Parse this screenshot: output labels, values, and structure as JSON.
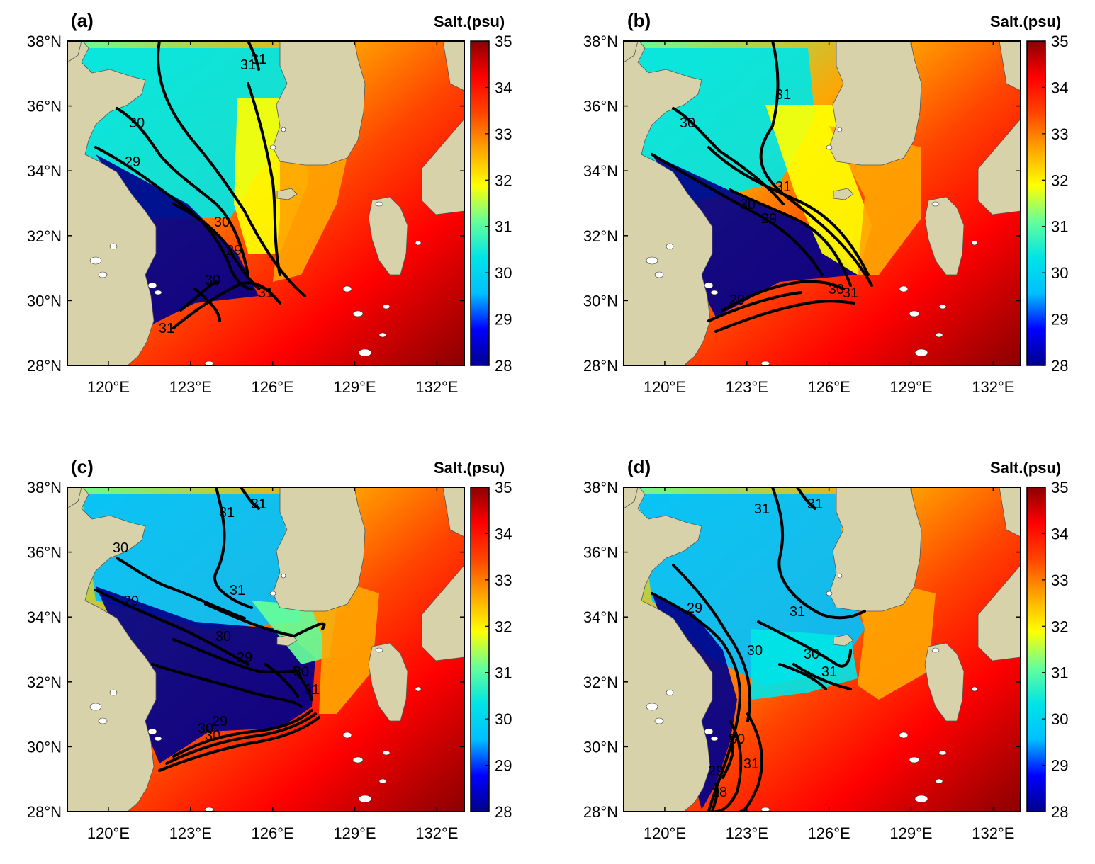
{
  "figure": {
    "colorbar": {
      "title": "Salt.(psu)",
      "ticks": [
        "35",
        "34",
        "33",
        "32",
        "31",
        "30",
        "29",
        "28"
      ],
      "colors": [
        "#00008b",
        "#0000ff",
        "#00bfff",
        "#00e5e5",
        "#66ff99",
        "#ffff00",
        "#ffa500",
        "#ff4500",
        "#ff0000",
        "#8b0000"
      ]
    },
    "lat_ticks": [
      "38°N",
      "36°N",
      "34°N",
      "32°N",
      "30°N",
      "28°N"
    ],
    "lon_ticks": [
      "120°E",
      "123°E",
      "126°E",
      "129°E",
      "132°E"
    ],
    "land_color": "#d8d2aa",
    "panels": [
      {
        "id": "a",
        "label": "(a)",
        "contours": [
          "31",
          "30",
          "29",
          "30",
          "31",
          "29",
          "30",
          "31",
          "31"
        ]
      },
      {
        "id": "b",
        "label": "(b)",
        "contours": [
          "31",
          "30",
          "31",
          "30",
          "29",
          "29",
          "30",
          "31"
        ]
      },
      {
        "id": "c",
        "label": "(c)",
        "contours": [
          "31",
          "31",
          "30",
          "29",
          "31",
          "30",
          "29",
          "30",
          "31",
          "30",
          "29",
          "30"
        ]
      },
      {
        "id": "d",
        "label": "(d)",
        "contours": [
          "31",
          "31",
          "29",
          "30",
          "31",
          "30",
          "31",
          "30",
          "31",
          "29",
          "28"
        ]
      }
    ]
  }
}
